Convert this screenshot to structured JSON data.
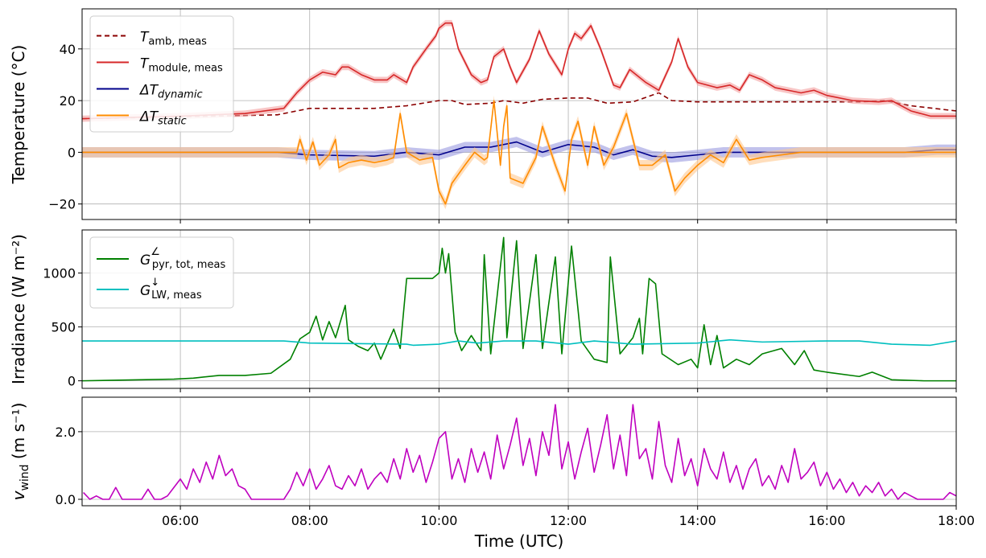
{
  "chart_data": [
    {
      "type": "line",
      "panel": "temperature",
      "ylabel": "Temperature (°C)",
      "xlim": [
        4.48,
        18.0
      ],
      "ylim": [
        -26,
        55.5
      ],
      "yticks": [
        -20,
        0,
        20,
        40
      ],
      "ytick_labels": [
        "−20",
        "0",
        "20",
        "40"
      ],
      "grid": true,
      "legend_position": "top-left",
      "legend": [
        {
          "main": "T",
          "sub": "amb, meas",
          "italic_sub": false
        },
        {
          "main": "T",
          "sub": "module, meas",
          "italic_sub": false
        },
        {
          "main": "ΔT",
          "sub": "dynamic",
          "italic_sub": true
        },
        {
          "main": "ΔT",
          "sub": "static",
          "italic_sub": true
        }
      ],
      "series": [
        {
          "name": "T_amb,meas",
          "color": "#8b0000",
          "dash": true,
          "band": 0,
          "x": [
            4.48,
            7.5,
            7.8,
            8.0,
            8.5,
            9.0,
            9.5,
            10.0,
            10.2,
            10.4,
            10.8,
            11.0,
            11.3,
            11.6,
            12.0,
            12.3,
            12.6,
            13.0,
            13.4,
            13.6,
            14.0,
            15.0,
            16.0,
            16.5,
            16.9,
            17.3,
            18.0
          ],
          "y": [
            13,
            14.5,
            16,
            17,
            17,
            17,
            18,
            20,
            20,
            18.5,
            19,
            20,
            19,
            20.5,
            21,
            21,
            19,
            19.5,
            23,
            20,
            19.5,
            19.5,
            19.5,
            19.5,
            20,
            18,
            16
          ]
        },
        {
          "name": "T_module,meas",
          "color": "#d62728",
          "dash": false,
          "band": 1.2,
          "band_color": "#f4a0a0",
          "x": [
            4.48,
            6.0,
            7.0,
            7.6,
            7.8,
            8.0,
            8.2,
            8.4,
            8.5,
            8.6,
            8.8,
            9.0,
            9.2,
            9.3,
            9.5,
            9.6,
            9.8,
            9.95,
            10.0,
            10.1,
            10.2,
            10.3,
            10.5,
            10.65,
            10.75,
            10.85,
            11.0,
            11.1,
            11.2,
            11.4,
            11.55,
            11.7,
            11.9,
            12.0,
            12.1,
            12.2,
            12.35,
            12.5,
            12.7,
            12.8,
            12.95,
            13.2,
            13.4,
            13.6,
            13.7,
            13.85,
            14.0,
            14.3,
            14.5,
            14.65,
            14.8,
            15.0,
            15.2,
            15.4,
            15.6,
            15.8,
            16.0,
            16.4,
            16.8,
            17.0,
            17.3,
            17.6,
            18.0
          ],
          "y": [
            13,
            14,
            15,
            17,
            23,
            28,
            31,
            30,
            33,
            33,
            30,
            28,
            28,
            30,
            27,
            33,
            40,
            45,
            48,
            50,
            50,
            40,
            30,
            27,
            28,
            37,
            40,
            33,
            27,
            36,
            47,
            38,
            30,
            40,
            46,
            44,
            49,
            40,
            26,
            25,
            32,
            27,
            24,
            35,
            44,
            33,
            27,
            25,
            26,
            24,
            30,
            28,
            25,
            24,
            23,
            24,
            22,
            20,
            19.5,
            20,
            16,
            14,
            14
          ]
        },
        {
          "name": "dT_dynamic",
          "color": "#00008b",
          "dash": false,
          "band": 2,
          "band_color": "#9a9ae0",
          "x": [
            4.48,
            7.5,
            8.0,
            9.0,
            9.5,
            10.0,
            10.4,
            10.8,
            11.2,
            11.6,
            12.0,
            12.4,
            12.7,
            13.0,
            13.3,
            13.6,
            14.0,
            14.4,
            15.0,
            16.0,
            17.2,
            17.7,
            18.0
          ],
          "y": [
            0,
            0,
            -1,
            -1.5,
            0,
            -1,
            2,
            2,
            4,
            0,
            3,
            2,
            -1,
            1,
            -1.5,
            -2,
            -1,
            0,
            0,
            0,
            0,
            1,
            1
          ]
        },
        {
          "name": "dT_static",
          "color": "#ff8c00",
          "dash": false,
          "band": 2,
          "band_color": "#ffc890",
          "x": [
            4.48,
            7.8,
            7.85,
            7.95,
            8.05,
            8.15,
            8.3,
            8.4,
            8.45,
            8.6,
            8.8,
            9.0,
            9.2,
            9.3,
            9.4,
            9.5,
            9.7,
            9.9,
            10.0,
            10.1,
            10.2,
            10.4,
            10.55,
            10.7,
            10.75,
            10.85,
            10.95,
            11.0,
            11.05,
            11.1,
            11.3,
            11.5,
            11.6,
            11.8,
            11.95,
            12.05,
            12.15,
            12.3,
            12.4,
            12.55,
            12.7,
            12.9,
            13.0,
            13.1,
            13.3,
            13.5,
            13.65,
            13.8,
            14.0,
            14.2,
            14.4,
            14.6,
            14.8,
            15.0,
            15.3,
            15.6,
            16.0,
            17.0,
            18.0
          ],
          "y": [
            0,
            0,
            5,
            -3,
            4,
            -5,
            -1,
            5,
            -6,
            -4,
            -3,
            -4,
            -3,
            -2,
            15,
            0,
            -3,
            -2,
            -15,
            -20,
            -12,
            -5,
            0,
            -3,
            -2,
            20,
            -5,
            10,
            18,
            -10,
            -12,
            -2,
            10,
            -5,
            -15,
            5,
            12,
            -5,
            10,
            -5,
            2,
            15,
            5,
            -5,
            -5,
            -1,
            -15,
            -10,
            -5,
            -1,
            -4,
            5,
            -3,
            -2,
            -1,
            0,
            0,
            0,
            0
          ]
        }
      ]
    },
    {
      "type": "line",
      "panel": "irradiance",
      "ylabel": "Irradiance (W m⁻²)",
      "xlim": [
        4.48,
        18.0
      ],
      "ylim": [
        -70,
        1400
      ],
      "yticks": [
        0,
        500,
        1000
      ],
      "ytick_labels": [
        "0",
        "500",
        "1000"
      ],
      "grid": true,
      "legend_position": "top-left",
      "legend": [
        {
          "main": "G",
          "sup": "∠",
          "sub": "pyr, tot, meas",
          "italic_sub": false
        },
        {
          "main": "G",
          "sup": "↓",
          "sub": "LW, meas",
          "italic_sub": false
        }
      ],
      "series": [
        {
          "name": "G_pyr,tot,meas",
          "color": "#008000",
          "x": [
            4.48,
            5.9,
            6.2,
            6.6,
            7.0,
            7.4,
            7.7,
            7.85,
            8.0,
            8.1,
            8.2,
            8.3,
            8.4,
            8.55,
            8.6,
            8.75,
            8.9,
            9.0,
            9.1,
            9.3,
            9.4,
            9.5,
            9.9,
            10.0,
            10.05,
            10.1,
            10.15,
            10.25,
            10.35,
            10.5,
            10.65,
            10.7,
            10.8,
            11.0,
            11.05,
            11.2,
            11.3,
            11.5,
            11.6,
            11.8,
            11.9,
            12.05,
            12.2,
            12.4,
            12.6,
            12.65,
            12.8,
            13.0,
            13.1,
            13.15,
            13.25,
            13.35,
            13.45,
            13.7,
            13.9,
            14.0,
            14.1,
            14.2,
            14.3,
            14.4,
            14.6,
            14.8,
            15.0,
            15.3,
            15.5,
            15.65,
            15.8,
            16.0,
            16.5,
            16.7,
            17.0,
            17.5,
            18.0
          ],
          "y": [
            0,
            15,
            25,
            50,
            50,
            70,
            200,
            390,
            450,
            600,
            380,
            550,
            400,
            700,
            380,
            320,
            280,
            350,
            200,
            480,
            300,
            950,
            950,
            1000,
            1230,
            1000,
            1180,
            450,
            280,
            420,
            280,
            1170,
            250,
            1330,
            400,
            1300,
            300,
            1170,
            300,
            1150,
            250,
            1250,
            370,
            200,
            170,
            1150,
            250,
            400,
            580,
            250,
            950,
            900,
            250,
            150,
            200,
            120,
            520,
            150,
            420,
            120,
            200,
            150,
            250,
            300,
            150,
            280,
            100,
            80,
            40,
            80,
            10,
            0,
            0
          ]
        },
        {
          "name": "G_LW,meas",
          "color": "#00bfbf",
          "x": [
            4.48,
            7.6,
            8.0,
            9.5,
            9.6,
            10.0,
            10.3,
            10.6,
            11.0,
            11.5,
            12.0,
            12.4,
            13.0,
            14.0,
            14.5,
            15.0,
            16.0,
            16.5,
            17.0,
            17.6,
            18.0
          ],
          "y": [
            370,
            370,
            350,
            340,
            330,
            340,
            370,
            350,
            370,
            370,
            340,
            370,
            340,
            350,
            380,
            360,
            370,
            370,
            340,
            330,
            370
          ]
        }
      ]
    },
    {
      "type": "line",
      "panel": "wind",
      "ylabel_main": "v",
      "ylabel_sub": "wind",
      "ylabel_unit": " (m s⁻¹)",
      "xlabel": "Time (UTC)",
      "xlim": [
        4.48,
        18.0
      ],
      "ylim": [
        -0.19,
        3.02
      ],
      "yticks": [
        0.0,
        2.0
      ],
      "ytick_labels": [
        "0.0",
        "2.0"
      ],
      "xticks": [
        6,
        8,
        10,
        12,
        14,
        16,
        18
      ],
      "xtick_labels": [
        "06:00",
        "08:00",
        "10:00",
        "12:00",
        "14:00",
        "16:00",
        "18:00"
      ],
      "grid": true,
      "series": [
        {
          "name": "v_wind",
          "color": "#bf00bf",
          "x_start": 4.5,
          "x_step": 0.1,
          "y": [
            0.2,
            0,
            0.1,
            0,
            0,
            0.35,
            0,
            0,
            0,
            0,
            0.3,
            0,
            0,
            0.1,
            0.35,
            0.6,
            0.3,
            0.9,
            0.5,
            1.1,
            0.6,
            1.3,
            0.7,
            0.9,
            0.4,
            0.3,
            0,
            0,
            0,
            0,
            0,
            0,
            0.3,
            0.8,
            0.4,
            0.9,
            0.3,
            0.6,
            1.0,
            0.4,
            0.3,
            0.7,
            0.4,
            0.9,
            0.3,
            0.6,
            0.8,
            0.5,
            1.2,
            0.6,
            1.5,
            0.8,
            1.3,
            0.5,
            1.1,
            1.8,
            2.0,
            0.6,
            1.2,
            0.5,
            1.5,
            0.8,
            1.4,
            0.6,
            1.9,
            0.9,
            1.6,
            2.4,
            1.0,
            1.8,
            0.7,
            2.0,
            1.3,
            2.8,
            0.9,
            1.7,
            0.6,
            1.4,
            2.1,
            0.8,
            1.6,
            2.5,
            0.9,
            1.9,
            0.7,
            2.8,
            1.2,
            1.5,
            0.6,
            2.3,
            1.0,
            0.5,
            1.8,
            0.7,
            1.2,
            0.4,
            1.5,
            0.9,
            0.6,
            1.4,
            0.5,
            1.0,
            0.3,
            0.9,
            1.2,
            0.4,
            0.7,
            0.3,
            1.0,
            0.5,
            1.5,
            0.6,
            0.8,
            1.1,
            0.4,
            0.8,
            0.3,
            0.6,
            0.2,
            0.5,
            0.1,
            0.4,
            0.2,
            0.5,
            0.1,
            0.3,
            0.0,
            0.2,
            0.1,
            0.0,
            0,
            0,
            0,
            0,
            0.2,
            0.1
          ]
        }
      ]
    }
  ]
}
